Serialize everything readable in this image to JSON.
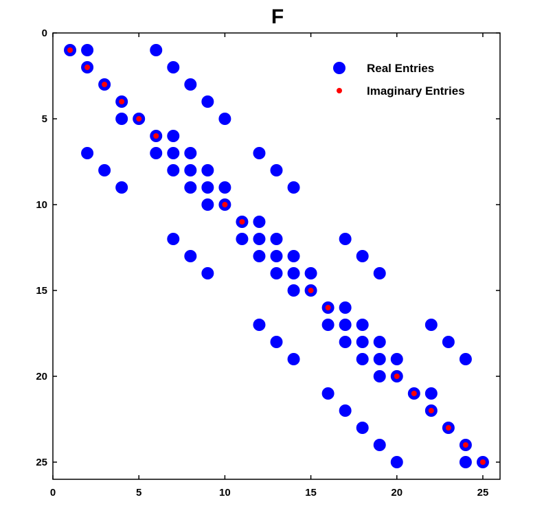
{
  "chart_data": {
    "type": "scatter",
    "title": "F",
    "xlabel": "",
    "ylabel": "",
    "xlim": [
      0,
      26
    ],
    "ylim": [
      0,
      26
    ],
    "y_inverted": true,
    "x_ticks": [
      0,
      5,
      10,
      15,
      20,
      25
    ],
    "y_ticks": [
      0,
      5,
      10,
      15,
      20,
      25
    ],
    "grid": false,
    "legend_position": "top-right",
    "series": [
      {
        "name": "Real Entries",
        "color": "#0000ff",
        "points": [
          [
            1,
            1
          ],
          [
            2,
            1
          ],
          [
            6,
            1
          ],
          [
            2,
            2
          ],
          [
            7,
            2
          ],
          [
            3,
            3
          ],
          [
            8,
            3
          ],
          [
            4,
            4
          ],
          [
            9,
            4
          ],
          [
            4,
            5
          ],
          [
            5,
            5
          ],
          [
            10,
            5
          ],
          [
            6,
            6
          ],
          [
            7,
            6
          ],
          [
            2,
            7
          ],
          [
            6,
            7
          ],
          [
            7,
            7
          ],
          [
            8,
            7
          ],
          [
            12,
            7
          ],
          [
            3,
            8
          ],
          [
            7,
            8
          ],
          [
            8,
            8
          ],
          [
            9,
            8
          ],
          [
            13,
            8
          ],
          [
            4,
            9
          ],
          [
            8,
            9
          ],
          [
            9,
            9
          ],
          [
            10,
            9
          ],
          [
            14,
            9
          ],
          [
            9,
            10
          ],
          [
            10,
            10
          ],
          [
            11,
            11
          ],
          [
            12,
            11
          ],
          [
            7,
            12
          ],
          [
            11,
            12
          ],
          [
            12,
            12
          ],
          [
            13,
            12
          ],
          [
            17,
            12
          ],
          [
            8,
            13
          ],
          [
            12,
            13
          ],
          [
            13,
            13
          ],
          [
            14,
            13
          ],
          [
            18,
            13
          ],
          [
            9,
            14
          ],
          [
            13,
            14
          ],
          [
            14,
            14
          ],
          [
            15,
            14
          ],
          [
            19,
            14
          ],
          [
            14,
            15
          ],
          [
            15,
            15
          ],
          [
            16,
            16
          ],
          [
            17,
            16
          ],
          [
            12,
            17
          ],
          [
            16,
            17
          ],
          [
            17,
            17
          ],
          [
            18,
            17
          ],
          [
            22,
            17
          ],
          [
            13,
            18
          ],
          [
            17,
            18
          ],
          [
            18,
            18
          ],
          [
            19,
            18
          ],
          [
            23,
            18
          ],
          [
            14,
            19
          ],
          [
            18,
            19
          ],
          [
            19,
            19
          ],
          [
            20,
            19
          ],
          [
            24,
            19
          ],
          [
            19,
            20
          ],
          [
            20,
            20
          ],
          [
            16,
            21
          ],
          [
            21,
            21
          ],
          [
            22,
            21
          ],
          [
            17,
            22
          ],
          [
            22,
            22
          ],
          [
            18,
            23
          ],
          [
            23,
            23
          ],
          [
            19,
            24
          ],
          [
            24,
            24
          ],
          [
            20,
            25
          ],
          [
            24,
            25
          ],
          [
            25,
            25
          ]
        ]
      },
      {
        "name": "Imaginary Entries",
        "color": "#ff0000",
        "points": [
          [
            1,
            1
          ],
          [
            2,
            2
          ],
          [
            3,
            3
          ],
          [
            4,
            4
          ],
          [
            5,
            5
          ],
          [
            6,
            6
          ],
          [
            10,
            10
          ],
          [
            11,
            11
          ],
          [
            15,
            15
          ],
          [
            16,
            16
          ],
          [
            20,
            20
          ],
          [
            21,
            21
          ],
          [
            22,
            22
          ],
          [
            23,
            23
          ],
          [
            24,
            24
          ],
          [
            25,
            25
          ]
        ]
      }
    ]
  }
}
